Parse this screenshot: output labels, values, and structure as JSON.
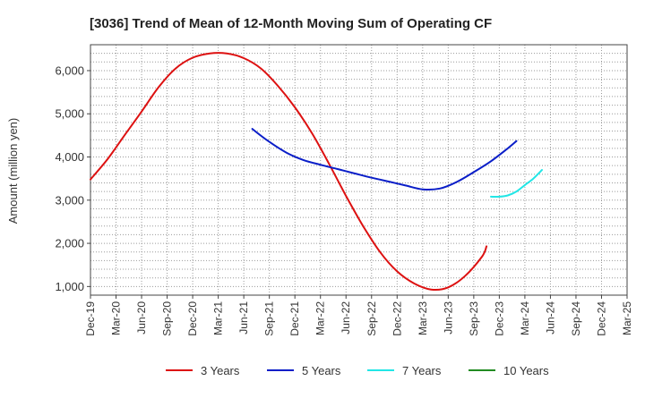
{
  "chart_data": {
    "type": "line",
    "title": "[3036]  Trend of Mean of 12-Month Moving Sum of Operating CF",
    "xlabel": "",
    "ylabel": "Amount (million yen)",
    "categories": [
      "Dec-19",
      "Mar-20",
      "Jun-20",
      "Sep-20",
      "Dec-20",
      "Mar-21",
      "Jun-21",
      "Sep-21",
      "Dec-21",
      "Mar-22",
      "Jun-22",
      "Sep-22",
      "Dec-22",
      "Mar-23",
      "Jun-23",
      "Sep-23",
      "Dec-23",
      "Mar-24",
      "Jun-24",
      "Sep-24",
      "Dec-24",
      "Mar-25"
    ],
    "yticks": [
      1000,
      2000,
      3000,
      4000,
      5000,
      6000
    ],
    "ytick_labels": [
      "1,000",
      "2,000",
      "3,000",
      "4,000",
      "5,000",
      "6,000"
    ],
    "ylim": [
      800,
      6600
    ],
    "grid": true,
    "legend_position": "bottom",
    "series": [
      {
        "name": "3 Years",
        "color": "#dd1111",
        "points": [
          [
            0,
            3480
          ],
          [
            0.67,
            3950
          ],
          [
            1.33,
            4500
          ],
          [
            2,
            5050
          ],
          [
            2.67,
            5620
          ],
          [
            3.33,
            6050
          ],
          [
            4,
            6300
          ],
          [
            4.67,
            6400
          ],
          [
            5.33,
            6400
          ],
          [
            6,
            6290
          ],
          [
            6.67,
            6050
          ],
          [
            7.33,
            5650
          ],
          [
            8,
            5150
          ],
          [
            8.67,
            4550
          ],
          [
            9.33,
            3850
          ],
          [
            10,
            3100
          ],
          [
            10.67,
            2400
          ],
          [
            11.33,
            1800
          ],
          [
            12,
            1350
          ],
          [
            12.67,
            1070
          ],
          [
            13.33,
            930
          ],
          [
            14,
            980
          ],
          [
            14.67,
            1250
          ],
          [
            15.33,
            1700
          ],
          [
            15.5,
            1930
          ]
        ]
      },
      {
        "name": "5 Years",
        "color": "#0a1ec8",
        "points": [
          [
            6.33,
            4650
          ],
          [
            7,
            4350
          ],
          [
            7.67,
            4100
          ],
          [
            8.33,
            3930
          ],
          [
            9,
            3820
          ],
          [
            9.67,
            3720
          ],
          [
            10.33,
            3620
          ],
          [
            11,
            3520
          ],
          [
            11.67,
            3430
          ],
          [
            12.33,
            3340
          ],
          [
            13,
            3250
          ],
          [
            13.67,
            3270
          ],
          [
            14.33,
            3420
          ],
          [
            15,
            3650
          ],
          [
            15.67,
            3900
          ],
          [
            16.33,
            4200
          ],
          [
            16.67,
            4370
          ]
        ]
      },
      {
        "name": "7 Years",
        "color": "#22e6e6",
        "points": [
          [
            15.67,
            3080
          ],
          [
            16,
            3080
          ],
          [
            16.33,
            3110
          ],
          [
            16.67,
            3200
          ],
          [
            17,
            3350
          ],
          [
            17.33,
            3500
          ],
          [
            17.67,
            3700
          ]
        ]
      },
      {
        "name": "10 Years",
        "color": "#228b22",
        "points": []
      }
    ]
  }
}
